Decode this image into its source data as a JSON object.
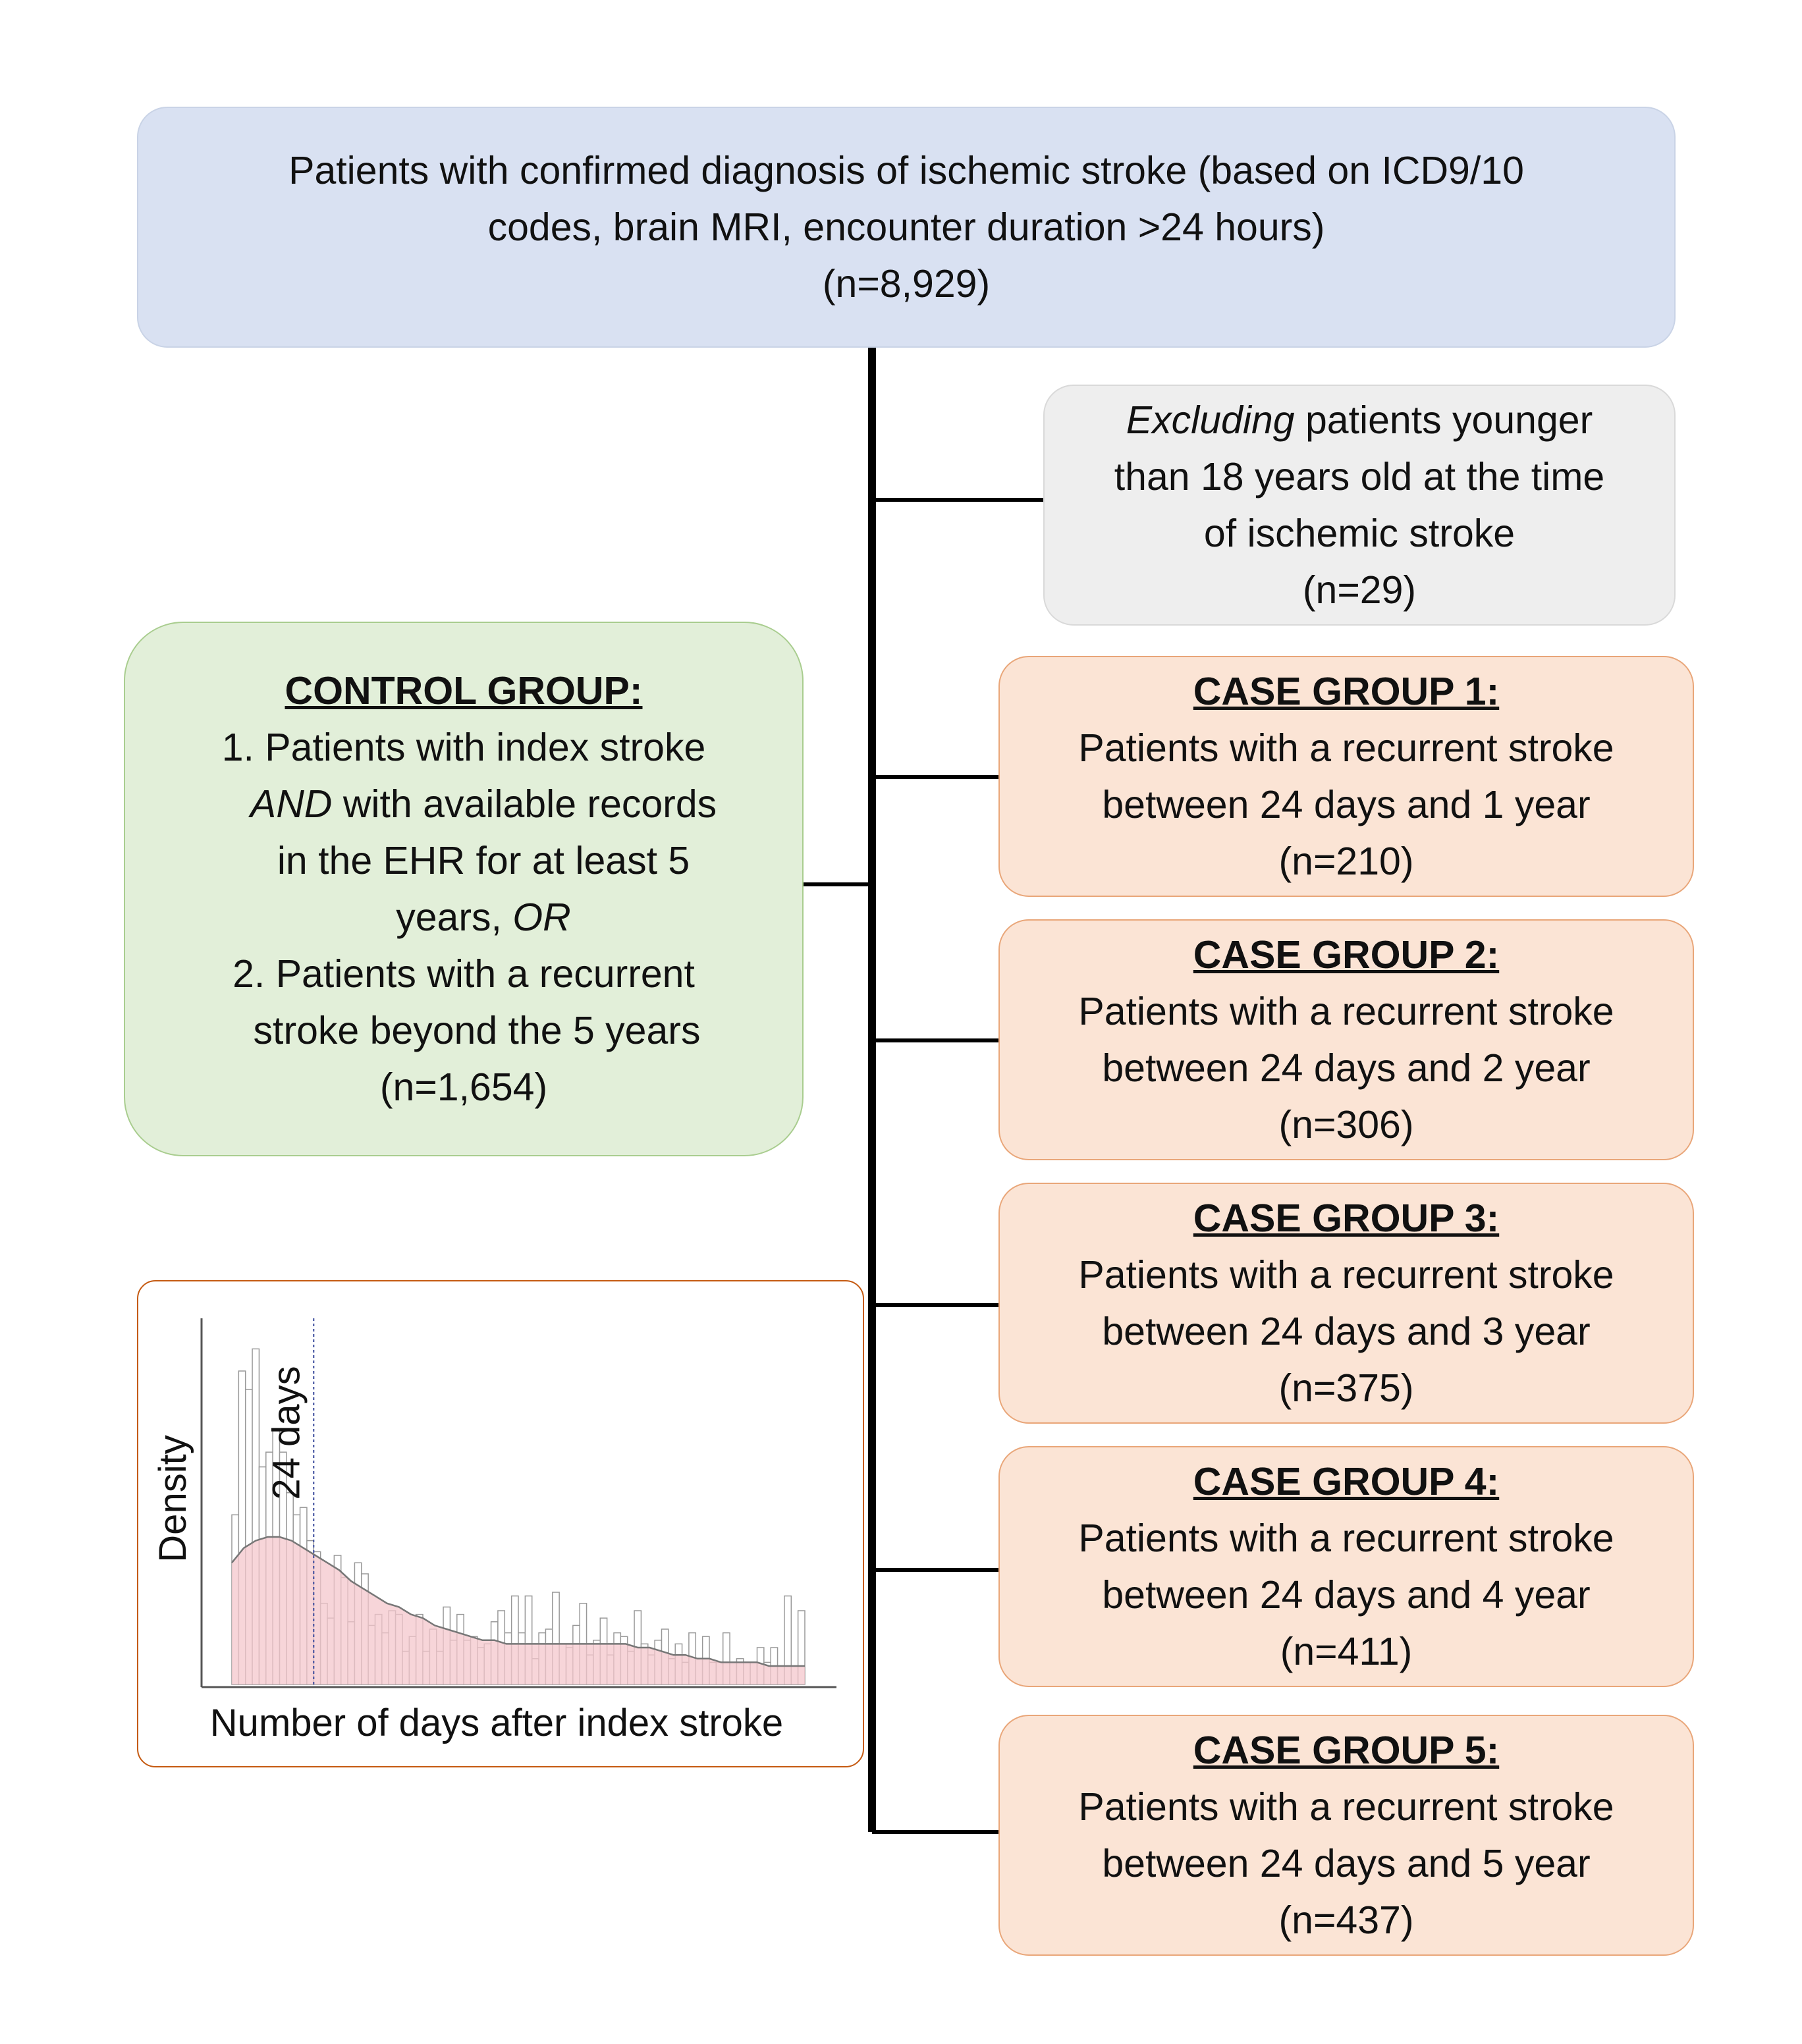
{
  "top_box": {
    "line1": "Patients with confirmed diagnosis of ischemic stroke (based on ICD9/10",
    "line2": "codes, brain MRI, encounter duration >24 hours)",
    "line3": "(n=8,929)"
  },
  "exclusion_box": {
    "lead_italic": "Excluding",
    "line1_rest": " patients younger",
    "line2": "than 18 years old at the time",
    "line3": "of ischemic stroke",
    "line4": "(n=29)"
  },
  "control_group": {
    "heading": "CONTROL GROUP:",
    "item1_line1": "1. Patients with index stroke",
    "item1_and": "AND",
    "item1_line2_rest": " with available records",
    "item1_line3": "in the EHR for at least 5",
    "item1_line4_start": "years, ",
    "item1_or": "OR",
    "item2_line1": "2. Patients with a recurrent",
    "item2_line2": "stroke beyond the 5 years",
    "count": "(n=1,654)"
  },
  "case_groups": [
    {
      "heading": "CASE GROUP 1:",
      "line1": "Patients with a recurrent stroke",
      "line2": "between 24 days and 1 year",
      "count": "(n=210)"
    },
    {
      "heading": "CASE GROUP 2:",
      "line1": "Patients with a recurrent stroke",
      "line2": "between 24 days and 2 year",
      "count": "(n=306)"
    },
    {
      "heading": "CASE GROUP 3:",
      "line1": "Patients with a recurrent stroke",
      "line2": "between 24 days and 3 year",
      "count": "(n=375)"
    },
    {
      "heading": "CASE GROUP 4:",
      "line1": "Patients with a recurrent stroke",
      "line2": "between 24 days and 4 year",
      "count": "(n=411)"
    },
    {
      "heading": "CASE GROUP 5:",
      "line1": "Patients with a recurrent stroke",
      "line2": "between 24 days and 5 year",
      "count": "(n=437)"
    }
  ],
  "chart_data": {
    "type": "bar",
    "xlabel": "Number of days after index stroke",
    "ylabel": "Density",
    "annotation": "24 days",
    "annotation_bin": 12,
    "colors": {
      "bars": "#ffffff",
      "bar_edge": "#999999",
      "density_fill": "#f4c7cc",
      "density_line": "#777777",
      "marker_line": "#3a4a9c"
    },
    "values": [
      0.46,
      0.85,
      0.8,
      0.91,
      0.59,
      0.63,
      0.69,
      0.63,
      0.52,
      0.46,
      0.48,
      0.39,
      0.36,
      0.22,
      0.18,
      0.35,
      0.29,
      0.17,
      0.33,
      0.3,
      0.16,
      0.19,
      0.14,
      0.2,
      0.19,
      0.09,
      0.13,
      0.19,
      0.09,
      0.15,
      0.09,
      0.21,
      0.12,
      0.19,
      0.12,
      0.13,
      0.1,
      0.11,
      0.17,
      0.2,
      0.14,
      0.24,
      0.14,
      0.24,
      0.07,
      0.14,
      0.15,
      0.25,
      0.11,
      0.1,
      0.16,
      0.22,
      0.08,
      0.12,
      0.18,
      0.08,
      0.14,
      0.13,
      0.09,
      0.2,
      0.11,
      0.08,
      0.12,
      0.15,
      0.07,
      0.11,
      0.06,
      0.14,
      0.07,
      0.13,
      0.06,
      0.06,
      0.14,
      0.06,
      0.07,
      0.06,
      0.06,
      0.1,
      0.06,
      0.1,
      0.05,
      0.24,
      0.05,
      0.2
    ],
    "density": [
      0.33,
      0.37,
      0.39,
      0.4,
      0.4,
      0.39,
      0.37,
      0.35,
      0.33,
      0.31,
      0.28,
      0.26,
      0.24,
      0.22,
      0.21,
      0.19,
      0.18,
      0.16,
      0.15,
      0.14,
      0.13,
      0.12,
      0.12,
      0.11,
      0.11,
      0.11,
      0.11,
      0.11,
      0.11,
      0.11,
      0.11,
      0.11,
      0.11,
      0.11,
      0.1,
      0.1,
      0.09,
      0.08,
      0.08,
      0.07,
      0.07,
      0.06,
      0.06,
      0.06,
      0.06,
      0.05,
      0.05,
      0.05,
      0.05
    ]
  }
}
